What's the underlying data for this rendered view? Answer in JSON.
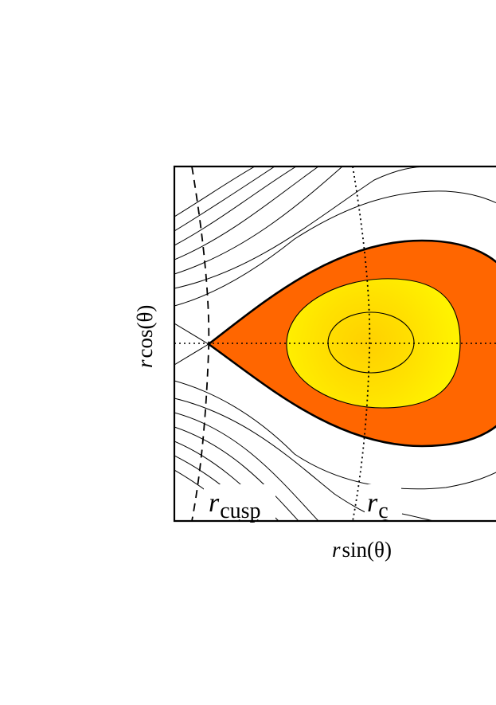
{
  "diagram": {
    "labels": {
      "cusp_italic": "r",
      "cusp_sub": "cusp",
      "c_italic": "r",
      "c_sub": "c",
      "xaxis_italic": "r",
      "xaxis_rest": "sin(θ)",
      "yaxis_italic": "r",
      "yaxis_rest": "cos(θ)"
    },
    "colors": {
      "outer_lobe": "#ff6600",
      "middle_lobe": "#ffee00",
      "core": "#ffd200",
      "lines": "#000000",
      "background": "#ffffff"
    }
  }
}
